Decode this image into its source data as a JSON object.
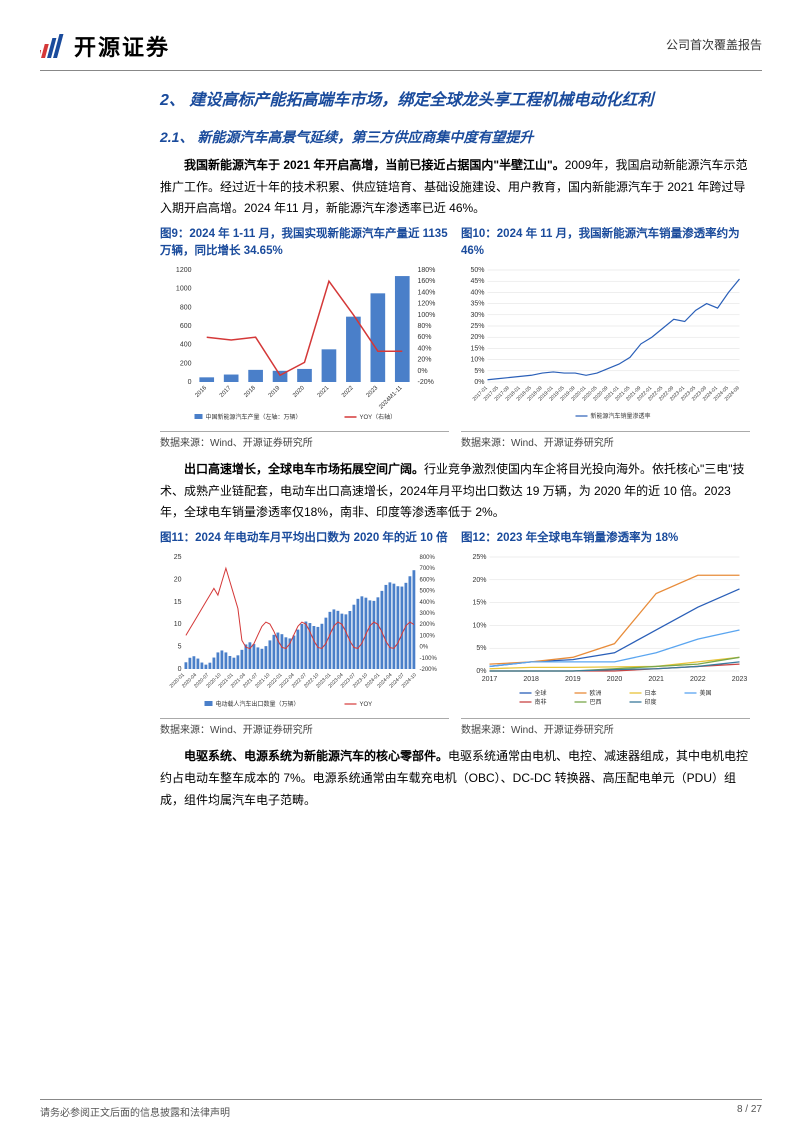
{
  "header": {
    "company": "开源证券",
    "report_type": "公司首次覆盖报告"
  },
  "h2": "2、 建设高标产能拓高端车市场，绑定全球龙头享工程机械电动化红利",
  "h3_1": "2.1、 新能源汽车高景气延续，第三方供应商集中度有望提升",
  "para1_bold": "我国新能源汽车于 2021 年开启高增，当前已接近占据国内\"半壁江山\"。",
  "para1_rest": "2009年，我国启动新能源汽车示范推广工作。经过近十年的技术积累、供应链培育、基础设施建设、用户教育，国内新能源汽车于 2021 年跨过导入期开启高增。2024 年11 月，新能源汽车渗透率已近 46%。",
  "para2_bold": "出口高速增长，全球电车市场拓展空间广阔。",
  "para2_rest": "行业竞争激烈使国内车企将目光投向海外。依托核心\"三电\"技术、成熟产业链配套，电动车出口高速增长，2024年月平均出口数达 19 万辆，为 2020 年的近 10 倍。2023 年，全球电车销量渗透率仅18%，南非、印度等渗透率低于 2%。",
  "para3_bold": "电驱系统、电源系统为新能源汽车的核心零部件。",
  "para3_rest": "电驱系统通常由电机、电控、减速器组成，其中电机电控约占电动车整车成本的 7%。电源系统通常由车载充电机（OBC）、DC-DC 转换器、高压配电单元（PDU）组成，组件均属汽车电子范畴。",
  "fig9": {
    "title": "图9：2024 年 1-11 月，我国实现新能源汽车产量近 1135万辆，同比增长 34.65%",
    "type": "bar+line",
    "categories": [
      "2016",
      "2017",
      "2018",
      "2019",
      "2020",
      "2021",
      "2022",
      "2023",
      "2024M1-11"
    ],
    "bar_values": [
      50,
      80,
      130,
      120,
      140,
      350,
      700,
      950,
      1135
    ],
    "line_values": [
      60,
      55,
      60,
      -8,
      15,
      160,
      100,
      35,
      35
    ],
    "bar_color": "#4a7fc9",
    "line_color": "#d43838",
    "y1_lim": [
      0,
      1200
    ],
    "y1_step": 200,
    "y2_lim": [
      -20,
      180
    ],
    "y2_step": 20,
    "legend_bar": "中国新能源汽车产量（左轴：万辆）",
    "legend_line": "YOY（右轴）",
    "source": "数据来源：Wind、开源证券研究所"
  },
  "fig10": {
    "title": "图10：2024 年 11 月，我国新能源汽车销量渗透率约为46%",
    "type": "line",
    "x_labels": [
      "2017-01",
      "2017-05",
      "2017-09",
      "2018-01",
      "2018-05",
      "2018-09",
      "2019-01",
      "2019-05",
      "2019-09",
      "2020-01",
      "2020-05",
      "2020-09",
      "2021-01",
      "2021-05",
      "2021-09",
      "2022-01",
      "2022-05",
      "2022-09",
      "2023-01",
      "2023-05",
      "2023-09",
      "2024-01",
      "2024-05",
      "2024-09"
    ],
    "values": [
      1,
      1.5,
      2,
      2.5,
      3,
      4,
      4.5,
      4,
      4,
      3,
      4,
      6,
      8,
      11,
      17,
      20,
      24,
      28,
      27,
      32,
      35,
      33,
      40,
      46
    ],
    "line_color": "#2a5fb8",
    "ylim": [
      0,
      50
    ],
    "ystep": 5,
    "legend": "新能源汽车销量渗透率",
    "source": "数据来源：Wind、开源证券研究所"
  },
  "fig11": {
    "title": "图11：2024 年电动车月平均出口数为 2020 年的近 10 倍",
    "type": "bar+line",
    "x_labels": [
      "2020-01",
      "2020-04",
      "2020-07",
      "2020-10",
      "2021-01",
      "2021-04",
      "2021-07",
      "2021-10",
      "2022-01",
      "2022-04",
      "2022-07",
      "2022-10",
      "2023-01",
      "2023-04",
      "2023-07",
      "2023-10",
      "2024-01",
      "2024-04",
      "2024-07",
      "2024-10"
    ],
    "bar_color": "#4a7fc9",
    "line_color": "#d43838",
    "y1_lim": [
      0,
      25
    ],
    "y1_step": 5,
    "y2_lim": [
      -200,
      800
    ],
    "y2_step": 100,
    "legend_bar": "电动载人汽车出口数量（万辆）",
    "legend_line": "YOY",
    "source": "数据来源：Wind、开源证券研究所"
  },
  "fig12": {
    "title": "图12：2023 年全球电车销量渗透率为 18%",
    "type": "multiline",
    "x_labels": [
      "2017",
      "2018",
      "2019",
      "2020",
      "2021",
      "2022",
      "2023"
    ],
    "series": [
      {
        "name": "全球",
        "color": "#2a5fb8",
        "values": [
          1,
          2,
          2.5,
          4,
          9,
          14,
          18
        ]
      },
      {
        "name": "欧洲",
        "color": "#e88c3a",
        "values": [
          1.5,
          2,
          3,
          6,
          17,
          21,
          21
        ]
      },
      {
        "name": "日本",
        "color": "#e8c43a",
        "values": [
          0.5,
          0.8,
          0.8,
          0.9,
          1,
          2,
          3
        ]
      },
      {
        "name": "美国",
        "color": "#5aa5f0",
        "values": [
          1,
          2,
          2,
          2,
          4,
          7,
          9
        ]
      },
      {
        "name": "南非",
        "color": "#c94444",
        "values": [
          0,
          0,
          0,
          0,
          0.5,
          1,
          1.5
        ]
      },
      {
        "name": "巴西",
        "color": "#7aa84a",
        "values": [
          0,
          0,
          0,
          0.5,
          1,
          1.5,
          3
        ]
      },
      {
        "name": "印度",
        "color": "#3a7a9c",
        "values": [
          0,
          0,
          0,
          0.3,
          0.5,
          1,
          2
        ]
      }
    ],
    "ylim": [
      0,
      25
    ],
    "ystep": 5,
    "source": "数据来源：Wind、开源证券研究所"
  },
  "footer": {
    "disclaimer": "请务必参阅正文后面的信息披露和法律声明",
    "page": "8 / 27"
  }
}
